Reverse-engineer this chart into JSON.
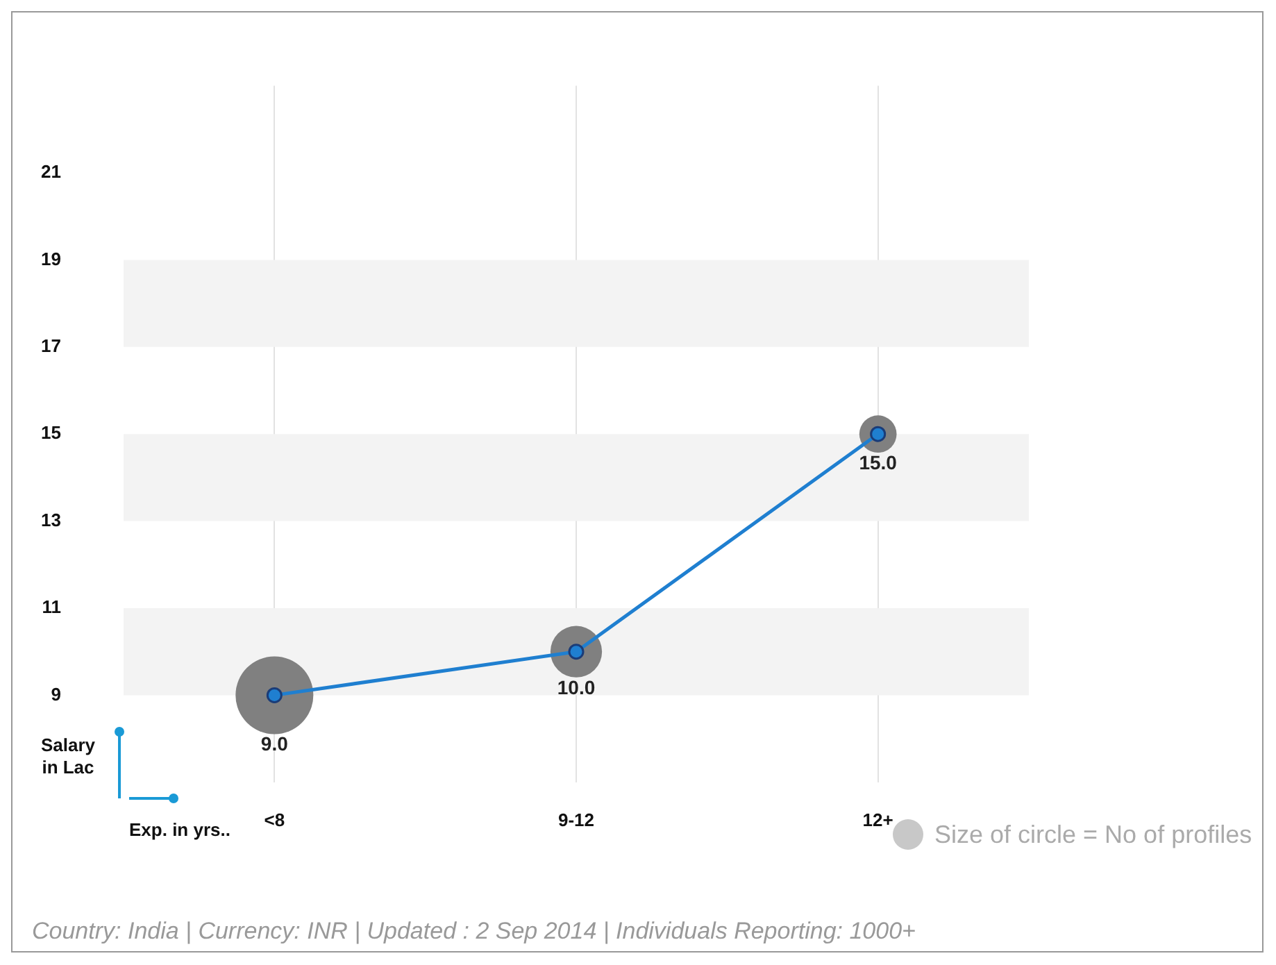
{
  "chart_data": {
    "type": "line",
    "categories": [
      "<8",
      "9-12",
      "12+"
    ],
    "xlabel": "Exp. in yrs..",
    "ylabel": "Salary in Lac",
    "ylim": [
      7,
      23
    ],
    "yticks": [
      9,
      11,
      13,
      15,
      17,
      19,
      21
    ],
    "grid": "x",
    "marker": "circle",
    "series": [
      {
        "type": "bubble",
        "color": "#808080",
        "values": [
          9,
          10,
          15
        ],
        "sizes": [
          1,
          0.44,
          0.23
        ],
        "value_labels": [
          "9.0",
          "10.0",
          "15.0"
        ]
      },
      {
        "color": "#1f7fd0",
        "values": [
          9,
          10,
          15
        ]
      }
    ],
    "annotations": [
      "Size of circle = No of profiles",
      "Country: India | Currency: INR | Updated : 2 Sep 2014 | Individuals Reporting: 1000+"
    ]
  }
}
